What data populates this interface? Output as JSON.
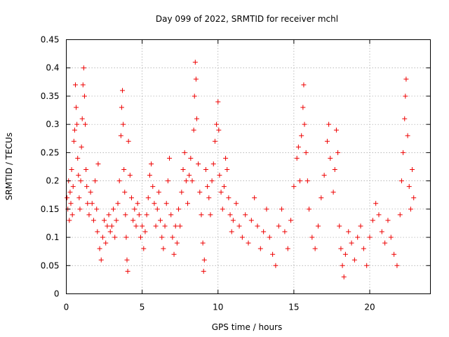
{
  "chart_data": {
    "type": "scatter",
    "title": "Day 099 of 2022, SRMTID for receiver mchl",
    "xlabel": "GPS time / hours",
    "ylabel": "SRMTID / TECUs",
    "xlim": [
      0,
      24
    ],
    "ylim": [
      0,
      0.45
    ],
    "xticks": [
      0,
      5,
      10,
      15,
      20
    ],
    "xtick_labels": [
      "0",
      "5",
      "10",
      "15",
      "20"
    ],
    "yticks": [
      0,
      0.05,
      0.1,
      0.15,
      0.2,
      0.25,
      0.3,
      0.35,
      0.4,
      0.45
    ],
    "ytick_labels": [
      "0",
      "0.05",
      "0.1",
      "0.15",
      "0.2",
      "0.25",
      "0.3",
      "0.35",
      "0.4",
      "0.45"
    ],
    "grid": true,
    "marker": "+",
    "color": "#ee0000",
    "series": [
      {
        "name": "SRMTID",
        "points": [
          [
            0.05,
            0.17
          ],
          [
            0.1,
            0.15
          ],
          [
            0.15,
            0.2
          ],
          [
            0.2,
            0.13
          ],
          [
            0.25,
            0.18
          ],
          [
            0.3,
            0.16
          ],
          [
            0.35,
            0.22
          ],
          [
            0.4,
            0.14
          ],
          [
            0.45,
            0.19
          ],
          [
            0.5,
            0.27
          ],
          [
            0.55,
            0.29
          ],
          [
            0.6,
            0.37
          ],
          [
            0.65,
            0.33
          ],
          [
            0.7,
            0.3
          ],
          [
            0.75,
            0.24
          ],
          [
            0.8,
            0.21
          ],
          [
            0.85,
            0.17
          ],
          [
            0.9,
            0.15
          ],
          [
            0.95,
            0.2
          ],
          [
            1.0,
            0.26
          ],
          [
            1.05,
            0.31
          ],
          [
            1.1,
            0.37
          ],
          [
            1.15,
            0.4
          ],
          [
            1.2,
            0.35
          ],
          [
            1.25,
            0.3
          ],
          [
            1.3,
            0.22
          ],
          [
            1.35,
            0.19
          ],
          [
            1.4,
            0.16
          ],
          [
            1.5,
            0.14
          ],
          [
            1.6,
            0.18
          ],
          [
            1.7,
            0.16
          ],
          [
            1.8,
            0.13
          ],
          [
            1.9,
            0.2
          ],
          [
            2.0,
            0.15
          ],
          [
            2.05,
            0.11
          ],
          [
            2.1,
            0.23
          ],
          [
            2.2,
            0.08
          ],
          [
            2.3,
            0.06
          ],
          [
            2.4,
            0.1
          ],
          [
            2.5,
            0.13
          ],
          [
            2.6,
            0.09
          ],
          [
            2.7,
            0.12
          ],
          [
            2.8,
            0.14
          ],
          [
            2.9,
            0.11
          ],
          [
            3.0,
            0.12
          ],
          [
            3.1,
            0.15
          ],
          [
            3.2,
            0.1
          ],
          [
            3.3,
            0.13
          ],
          [
            3.4,
            0.16
          ],
          [
            3.5,
            0.2
          ],
          [
            3.6,
            0.28
          ],
          [
            3.65,
            0.33
          ],
          [
            3.7,
            0.36
          ],
          [
            3.75,
            0.3
          ],
          [
            3.8,
            0.22
          ],
          [
            3.85,
            0.18
          ],
          [
            3.9,
            0.14
          ],
          [
            3.95,
            0.1
          ],
          [
            4.0,
            0.06
          ],
          [
            4.05,
            0.04
          ],
          [
            4.1,
            0.27
          ],
          [
            4.2,
            0.21
          ],
          [
            4.3,
            0.17
          ],
          [
            4.4,
            0.13
          ],
          [
            4.5,
            0.15
          ],
          [
            4.6,
            0.12
          ],
          [
            4.7,
            0.16
          ],
          [
            4.8,
            0.14
          ],
          [
            4.9,
            0.1
          ],
          [
            5.0,
            0.12
          ],
          [
            5.1,
            0.08
          ],
          [
            5.2,
            0.11
          ],
          [
            5.3,
            0.14
          ],
          [
            5.4,
            0.17
          ],
          [
            5.5,
            0.21
          ],
          [
            5.6,
            0.23
          ],
          [
            5.7,
            0.19
          ],
          [
            5.8,
            0.16
          ],
          [
            5.9,
            0.12
          ],
          [
            6.0,
            0.15
          ],
          [
            6.1,
            0.18
          ],
          [
            6.2,
            0.13
          ],
          [
            6.3,
            0.1
          ],
          [
            6.4,
            0.08
          ],
          [
            6.5,
            0.12
          ],
          [
            6.6,
            0.16
          ],
          [
            6.7,
            0.2
          ],
          [
            6.8,
            0.24
          ],
          [
            6.9,
            0.14
          ],
          [
            7.0,
            0.1
          ],
          [
            7.1,
            0.07
          ],
          [
            7.2,
            0.12
          ],
          [
            7.3,
            0.09
          ],
          [
            7.4,
            0.15
          ],
          [
            7.5,
            0.12
          ],
          [
            7.6,
            0.18
          ],
          [
            7.7,
            0.22
          ],
          [
            7.8,
            0.25
          ],
          [
            7.9,
            0.2
          ],
          [
            8.0,
            0.16
          ],
          [
            8.1,
            0.21
          ],
          [
            8.2,
            0.24
          ],
          [
            8.3,
            0.2
          ],
          [
            8.4,
            0.29
          ],
          [
            8.45,
            0.35
          ],
          [
            8.5,
            0.41
          ],
          [
            8.55,
            0.38
          ],
          [
            8.6,
            0.31
          ],
          [
            8.7,
            0.23
          ],
          [
            8.8,
            0.18
          ],
          [
            8.9,
            0.14
          ],
          [
            9.0,
            0.09
          ],
          [
            9.05,
            0.04
          ],
          [
            9.1,
            0.06
          ],
          [
            9.2,
            0.22
          ],
          [
            9.3,
            0.19
          ],
          [
            9.4,
            0.17
          ],
          [
            9.5,
            0.14
          ],
          [
            9.6,
            0.2
          ],
          [
            9.7,
            0.23
          ],
          [
            9.8,
            0.27
          ],
          [
            9.9,
            0.3
          ],
          [
            10.0,
            0.34
          ],
          [
            10.05,
            0.29
          ],
          [
            10.1,
            0.21
          ],
          [
            10.2,
            0.18
          ],
          [
            10.3,
            0.15
          ],
          [
            10.4,
            0.19
          ],
          [
            10.5,
            0.24
          ],
          [
            10.6,
            0.22
          ],
          [
            10.7,
            0.17
          ],
          [
            10.8,
            0.14
          ],
          [
            10.9,
            0.11
          ],
          [
            11.0,
            0.13
          ],
          [
            11.2,
            0.16
          ],
          [
            11.4,
            0.12
          ],
          [
            11.6,
            0.1
          ],
          [
            11.8,
            0.14
          ],
          [
            12.0,
            0.09
          ],
          [
            12.2,
            0.13
          ],
          [
            12.4,
            0.17
          ],
          [
            12.6,
            0.12
          ],
          [
            12.8,
            0.08
          ],
          [
            13.0,
            0.11
          ],
          [
            13.2,
            0.15
          ],
          [
            13.4,
            0.1
          ],
          [
            13.6,
            0.07
          ],
          [
            13.8,
            0.05
          ],
          [
            14.0,
            0.12
          ],
          [
            14.2,
            0.15
          ],
          [
            14.4,
            0.11
          ],
          [
            14.6,
            0.08
          ],
          [
            14.8,
            0.13
          ],
          [
            15.0,
            0.19
          ],
          [
            15.2,
            0.24
          ],
          [
            15.3,
            0.26
          ],
          [
            15.4,
            0.2
          ],
          [
            15.5,
            0.28
          ],
          [
            15.6,
            0.33
          ],
          [
            15.65,
            0.37
          ],
          [
            15.7,
            0.3
          ],
          [
            15.8,
            0.25
          ],
          [
            15.9,
            0.2
          ],
          [
            16.0,
            0.15
          ],
          [
            16.2,
            0.1
          ],
          [
            16.4,
            0.08
          ],
          [
            16.6,
            0.12
          ],
          [
            16.8,
            0.17
          ],
          [
            17.0,
            0.21
          ],
          [
            17.2,
            0.27
          ],
          [
            17.3,
            0.3
          ],
          [
            17.4,
            0.24
          ],
          [
            17.6,
            0.18
          ],
          [
            17.7,
            0.22
          ],
          [
            17.8,
            0.29
          ],
          [
            17.9,
            0.25
          ],
          [
            18.0,
            0.12
          ],
          [
            18.1,
            0.08
          ],
          [
            18.2,
            0.05
          ],
          [
            18.3,
            0.03
          ],
          [
            18.4,
            0.07
          ],
          [
            18.6,
            0.11
          ],
          [
            18.8,
            0.09
          ],
          [
            19.0,
            0.06
          ],
          [
            19.2,
            0.1
          ],
          [
            19.4,
            0.12
          ],
          [
            19.6,
            0.08
          ],
          [
            19.8,
            0.05
          ],
          [
            20.0,
            0.1
          ],
          [
            20.2,
            0.13
          ],
          [
            20.4,
            0.16
          ],
          [
            20.6,
            0.14
          ],
          [
            20.8,
            0.11
          ],
          [
            21.0,
            0.09
          ],
          [
            21.2,
            0.13
          ],
          [
            21.4,
            0.1
          ],
          [
            21.6,
            0.07
          ],
          [
            21.8,
            0.05
          ],
          [
            22.0,
            0.14
          ],
          [
            22.1,
            0.2
          ],
          [
            22.2,
            0.25
          ],
          [
            22.3,
            0.31
          ],
          [
            22.35,
            0.35
          ],
          [
            22.4,
            0.38
          ],
          [
            22.5,
            0.28
          ],
          [
            22.6,
            0.19
          ],
          [
            22.7,
            0.15
          ],
          [
            22.8,
            0.22
          ],
          [
            22.9,
            0.17
          ]
        ]
      }
    ]
  }
}
